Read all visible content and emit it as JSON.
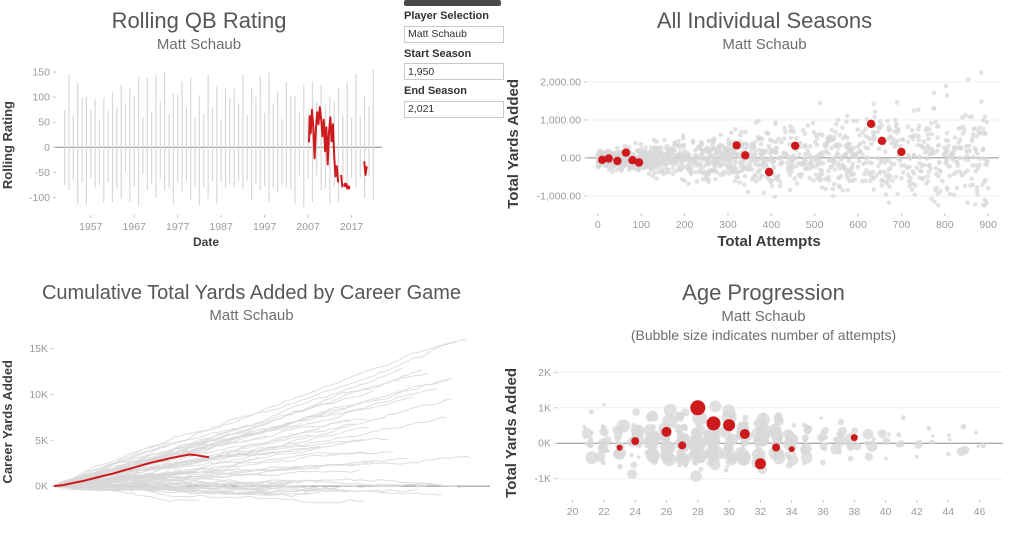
{
  "colors": {
    "highlight": "#cf1a1d",
    "muted": "#d8d8d8",
    "zero_line": "#8c8c8c",
    "grid": "#efefef"
  },
  "filters": {
    "player_selection": {
      "label": "Player Selection",
      "value": "Matt Schaub"
    },
    "start_season": {
      "label": "Start Season",
      "value": "1,950"
    },
    "end_season": {
      "label": "End Season",
      "value": "2,021"
    }
  },
  "chart_data": [
    {
      "id": "rolling",
      "type": "line",
      "title": "Rolling QB Rating",
      "subtitle": "Matt Schaub",
      "xlabel": "Date",
      "ylabel": "Rolling Rating",
      "xlim": [
        1949,
        2024
      ],
      "ylim": [
        -135,
        172
      ],
      "yticks": [
        [
          -100,
          "-100"
        ],
        [
          -50,
          "-50"
        ],
        [
          0,
          "0"
        ],
        [
          50,
          "50"
        ],
        [
          100,
          "100"
        ],
        [
          150,
          "150"
        ]
      ],
      "xticks": [
        [
          1957,
          "1957"
        ],
        [
          1967,
          "1967"
        ],
        [
          1977,
          "1977"
        ],
        [
          1987,
          "1987"
        ],
        [
          1997,
          "1997"
        ],
        [
          2007,
          "2007"
        ],
        [
          2017,
          "2017"
        ]
      ],
      "background": {
        "style": "vertical_lines",
        "count": 72,
        "x_start": 1951,
        "x_end": 2022,
        "seed": 7
      },
      "highlight": {
        "name": "Matt Schaub",
        "segments": [
          [
            [
              2007.2,
              10
            ],
            [
              2007.4,
              62
            ],
            [
              2007.6,
              28
            ],
            [
              2007.9,
              75
            ],
            [
              2008.2,
              40
            ],
            [
              2008.5,
              -22
            ],
            [
              2008.8,
              36
            ],
            [
              2009.1,
              70
            ],
            [
              2009.4,
              46
            ],
            [
              2009.7,
              80
            ],
            [
              2010.0,
              58
            ],
            [
              2010.3,
              22
            ],
            [
              2010.6,
              55
            ],
            [
              2010.9,
              -8
            ],
            [
              2011.2,
              40
            ],
            [
              2011.5,
              -34
            ],
            [
              2011.8,
              30
            ],
            [
              2012.1,
              60
            ],
            [
              2012.4,
              12
            ],
            [
              2012.7,
              46
            ],
            [
              2013.0,
              -18
            ],
            [
              2013.3,
              -58
            ],
            [
              2013.6,
              -38
            ],
            [
              2013.9,
              -70
            ]
          ],
          [
            [
              2014.6,
              -55
            ],
            [
              2014.9,
              -80
            ]
          ],
          [
            [
              2019.9,
              -28
            ],
            [
              2020.2,
              -55
            ],
            [
              2020.5,
              -38
            ]
          ]
        ],
        "points": [
          [
            2015.6,
            -75
          ],
          [
            2016.2,
            -80
          ]
        ]
      }
    },
    {
      "id": "seasons",
      "type": "scatter",
      "title": "All Individual Seasons",
      "subtitle": "Matt Schaub",
      "xlabel": "Total Attempts",
      "ylabel": "Total Yards Added",
      "xlim": [
        -25,
        925
      ],
      "ylim": [
        -1450,
        2500
      ],
      "yticks": [
        [
          -1000,
          "-1,000.00"
        ],
        [
          0,
          "0.00"
        ],
        [
          1000,
          "1,000.00"
        ],
        [
          2000,
          "2,000.00"
        ]
      ],
      "xticks": [
        [
          0,
          "0"
        ],
        [
          100,
          "100"
        ],
        [
          200,
          "200"
        ],
        [
          300,
          "300"
        ],
        [
          400,
          "400"
        ],
        [
          500,
          "500"
        ],
        [
          600,
          "600"
        ],
        [
          700,
          "700"
        ],
        [
          800,
          "800"
        ],
        [
          900,
          "900"
        ]
      ],
      "background": {
        "style": "scatter_cloud",
        "count": 1500,
        "seed": 11
      },
      "highlight": {
        "name": "Matt Schaub",
        "points": [
          [
            10,
            -50
          ],
          [
            25,
            -15
          ],
          [
            45,
            -80
          ],
          [
            65,
            140
          ],
          [
            80,
            -60
          ],
          [
            95,
            -120
          ],
          [
            320,
            330
          ],
          [
            340,
            70
          ],
          [
            395,
            -370
          ],
          [
            455,
            320
          ],
          [
            630,
            900
          ],
          [
            655,
            450
          ],
          [
            700,
            160
          ]
        ]
      }
    },
    {
      "id": "cumulative",
      "type": "line",
      "title": "Cumulative Total Yards Added by Career Game",
      "subtitle": "Matt Schaub",
      "xlabel": "",
      "ylabel": "Career Yards Added",
      "xlim": [
        0,
        270
      ],
      "ylim": [
        -2600,
        16800
      ],
      "yticks": [
        [
          0,
          "0K"
        ],
        [
          5000,
          "5K"
        ],
        [
          10000,
          "10K"
        ],
        [
          15000,
          "15K"
        ]
      ],
      "xticks": [],
      "background": {
        "style": "career_paths",
        "count": 80,
        "seed": 23
      },
      "highlight": {
        "name": "Matt Schaub",
        "segments": [
          [
            [
              0,
              0
            ],
            [
              6,
              120
            ],
            [
              12,
              350
            ],
            [
              18,
              560
            ],
            [
              24,
              830
            ],
            [
              30,
              1100
            ],
            [
              36,
              1350
            ],
            [
              42,
              1650
            ],
            [
              48,
              1950
            ],
            [
              54,
              2250
            ],
            [
              60,
              2550
            ],
            [
              66,
              2800
            ],
            [
              72,
              3050
            ],
            [
              78,
              3250
            ],
            [
              84,
              3450
            ],
            [
              88,
              3380
            ],
            [
              92,
              3250
            ],
            [
              96,
              3150
            ]
          ]
        ]
      }
    },
    {
      "id": "age",
      "type": "scatter",
      "title": "Age Progression",
      "subtitle": "Matt Schaub",
      "note": "(Bubble size indicates number of attempts)",
      "xlabel": "",
      "ylabel": "Total Yards Added",
      "xlim": [
        19,
        47.5
      ],
      "ylim": [
        -1600,
        2600
      ],
      "yticks": [
        [
          -1000,
          "-1K"
        ],
        [
          0,
          "0K"
        ],
        [
          1000,
          "1K"
        ],
        [
          2000,
          "2K"
        ]
      ],
      "xticks": [
        [
          20,
          "20"
        ],
        [
          22,
          "22"
        ],
        [
          24,
          "24"
        ],
        [
          26,
          "26"
        ],
        [
          28,
          "28"
        ],
        [
          30,
          "30"
        ],
        [
          32,
          "32"
        ],
        [
          34,
          "34"
        ],
        [
          36,
          "36"
        ],
        [
          38,
          "38"
        ],
        [
          40,
          "40"
        ],
        [
          42,
          "42"
        ],
        [
          44,
          "44"
        ],
        [
          46,
          "46"
        ]
      ],
      "background": {
        "style": "age_columns",
        "age_min": 21,
        "age_max": 46,
        "seed": 31
      },
      "highlight": {
        "name": "Matt Schaub",
        "points": [
          [
            23,
            -130,
            3
          ],
          [
            24,
            60,
            4
          ],
          [
            26,
            320,
            5
          ],
          [
            27,
            -60,
            4
          ],
          [
            28,
            1000,
            7.5
          ],
          [
            29,
            560,
            7
          ],
          [
            30,
            510,
            6
          ],
          [
            31,
            260,
            5
          ],
          [
            32,
            -580,
            5.5
          ],
          [
            33,
            -120,
            4
          ],
          [
            34,
            -170,
            3
          ],
          [
            38,
            160,
            3.5
          ]
        ]
      }
    }
  ]
}
